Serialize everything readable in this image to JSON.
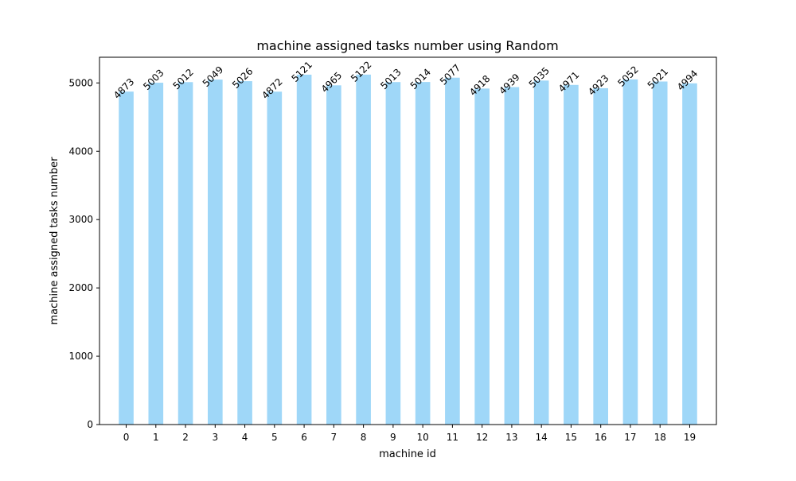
{
  "chart_data": {
    "type": "bar",
    "title": "machine assigned tasks number using Random",
    "xlabel": "machine id",
    "ylabel": "machine assigned tasks number",
    "categories": [
      "0",
      "1",
      "2",
      "3",
      "4",
      "5",
      "6",
      "7",
      "8",
      "9",
      "10",
      "11",
      "12",
      "13",
      "14",
      "15",
      "16",
      "17",
      "18",
      "19"
    ],
    "values": [
      4873,
      5003,
      5012,
      5049,
      5026,
      4872,
      5121,
      4965,
      5122,
      5013,
      5014,
      5077,
      4918,
      4939,
      5035,
      4971,
      4923,
      5052,
      5021,
      4994
    ],
    "y_ticks": [
      "0",
      "1000",
      "2000",
      "3000",
      "4000",
      "5000"
    ],
    "ylim": [
      0,
      5376
    ],
    "grid": false,
    "legend": "none",
    "bar_color": "#9fd7f8",
    "data_labels": true,
    "data_label_rotation_deg": 45
  }
}
